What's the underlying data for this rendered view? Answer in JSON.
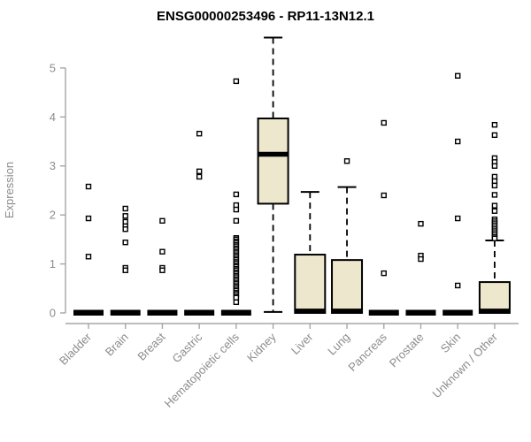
{
  "colors": {
    "background": "#ffffff",
    "box_fill": "#ede8cd",
    "box_stroke": "#000000",
    "median": "#000000",
    "whisker": "#000000",
    "outlier_stroke": "#000000",
    "axis_line": "#a6a6a6",
    "axis_text": "#8c8c8c",
    "title_text": "#000000"
  },
  "chart_data": {
    "type": "boxplot",
    "title": "ENSG00000253496 - RP11-13N12.1",
    "ylabel": "Expression",
    "xlabel": "",
    "ylim": [
      0,
      5
    ],
    "yticks": [
      0,
      1,
      2,
      3,
      4,
      5
    ],
    "grid": "off",
    "legend": "none",
    "categories": [
      "Bladder",
      "Brain",
      "Breast",
      "Gastric",
      "Hematopoietic cells",
      "Kidney",
      "Liver",
      "Lung",
      "Pancreas",
      "Prostate",
      "Skin",
      "Unknown / Other"
    ],
    "series": [
      {
        "name": "Bladder",
        "box": null,
        "outliers": [
          2.58,
          1.93,
          1.15
        ]
      },
      {
        "name": "Brain",
        "box": null,
        "outliers": [
          2.13,
          1.98,
          1.86,
          1.77,
          1.71,
          1.44,
          0.92,
          0.87
        ]
      },
      {
        "name": "Breast",
        "box": null,
        "outliers": [
          1.88,
          1.25,
          0.92,
          0.87
        ]
      },
      {
        "name": "Gastric",
        "box": null,
        "outliers": [
          3.66,
          2.89,
          2.78
        ]
      },
      {
        "name": "Hematopoietic cells",
        "box": null,
        "outliers": [
          4.73,
          2.42,
          2.2,
          2.11,
          1.88,
          1.53,
          1.5,
          1.46,
          1.43,
          1.39,
          1.36,
          1.32,
          1.29,
          1.25,
          1.22,
          1.18,
          1.15,
          1.11,
          1.08,
          1.04,
          1.01,
          0.97,
          0.94,
          0.9,
          0.87,
          0.83,
          0.8,
          0.76,
          0.73,
          0.69,
          0.66,
          0.62,
          0.59,
          0.55,
          0.52,
          0.48,
          0.45,
          0.41,
          0.38,
          0.34,
          0.31,
          0.22
        ]
      },
      {
        "name": "Kidney",
        "box": {
          "lo": 0.02,
          "q1": 2.23,
          "med": 3.22,
          "q3": 3.97,
          "hi": 5.62
        },
        "outliers": []
      },
      {
        "name": "Liver",
        "box": {
          "lo": null,
          "q1": 0,
          "med": 0.02,
          "q3": 1.19,
          "hi": 2.47
        },
        "outliers": []
      },
      {
        "name": "Lung",
        "box": {
          "lo": null,
          "q1": 0,
          "med": 0.02,
          "q3": 1.08,
          "hi": 2.57
        },
        "outliers": [
          3.1
        ]
      },
      {
        "name": "Pancreas",
        "box": null,
        "outliers": [
          3.88,
          2.4,
          0.81
        ]
      },
      {
        "name": "Prostate",
        "box": null,
        "outliers": [
          1.82,
          1.17,
          1.1
        ]
      },
      {
        "name": "Skin",
        "box": null,
        "outliers": [
          4.84,
          3.5,
          1.93,
          0.56
        ]
      },
      {
        "name": "Unknown / Other",
        "box": {
          "lo": null,
          "q1": 0,
          "med": 0.02,
          "q3": 0.63,
          "hi": 1.48
        },
        "outliers": [
          3.84,
          3.63,
          3.16,
          3.08,
          3.0,
          2.78,
          2.69,
          2.6,
          2.41,
          2.19,
          2.08,
          1.91,
          1.87,
          1.83,
          1.79,
          1.75,
          1.71,
          1.67,
          1.63,
          1.59,
          1.55,
          1.52
        ]
      }
    ]
  }
}
